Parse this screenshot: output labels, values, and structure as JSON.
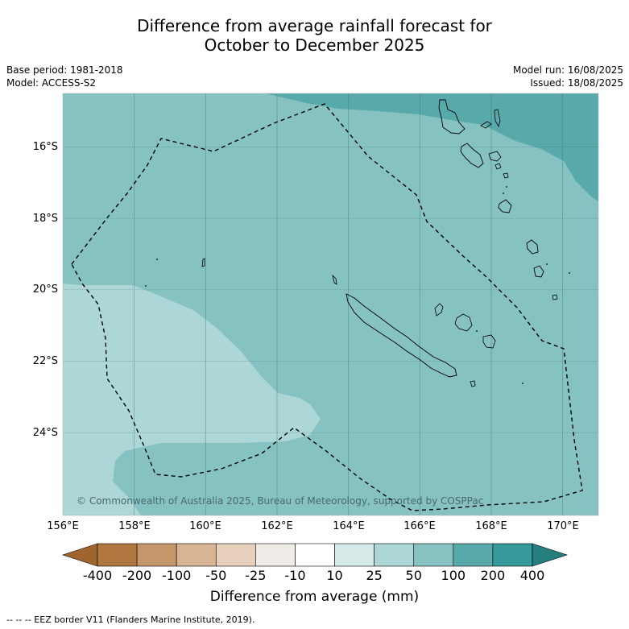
{
  "title_line1": "Difference from average rainfall forecast for",
  "title_line2": "October to December 2025",
  "base_period": "Base period: 1981-2018",
  "model": "Model: ACCESS-S2",
  "model_run": "Model run: 16/08/2025",
  "issued": "Issued: 18/08/2025",
  "copyright": "© Commonwealth of Australia 2025, Bureau of Meteorology, supported by COSPPac",
  "lat_labels": [
    "16°S",
    "18°S",
    "20°S",
    "22°S",
    "24°S"
  ],
  "lon_labels": [
    "156°E",
    "158°E",
    "160°E",
    "162°E",
    "164°E",
    "166°E",
    "168°E",
    "170°E"
  ],
  "colorbar": {
    "labels": [
      "-400",
      "-200",
      "-100",
      "-50",
      "-25",
      "-10",
      "10",
      "25",
      "50",
      "100",
      "200",
      "400"
    ],
    "colors": [
      "#a0652e",
      "#b07840",
      "#c4966a",
      "#d6b494",
      "#e6d0bc",
      "#efebe7",
      "#ffffff",
      "#d6ebe9",
      "#add6d6",
      "#86c2c1",
      "#58aaaa",
      "#36999a",
      "#24807f"
    ],
    "title": "Difference from average (mm)"
  },
  "footnote": "--  --  -- EEZ border V11 (Flanders Marine Institute, 2019)."
}
